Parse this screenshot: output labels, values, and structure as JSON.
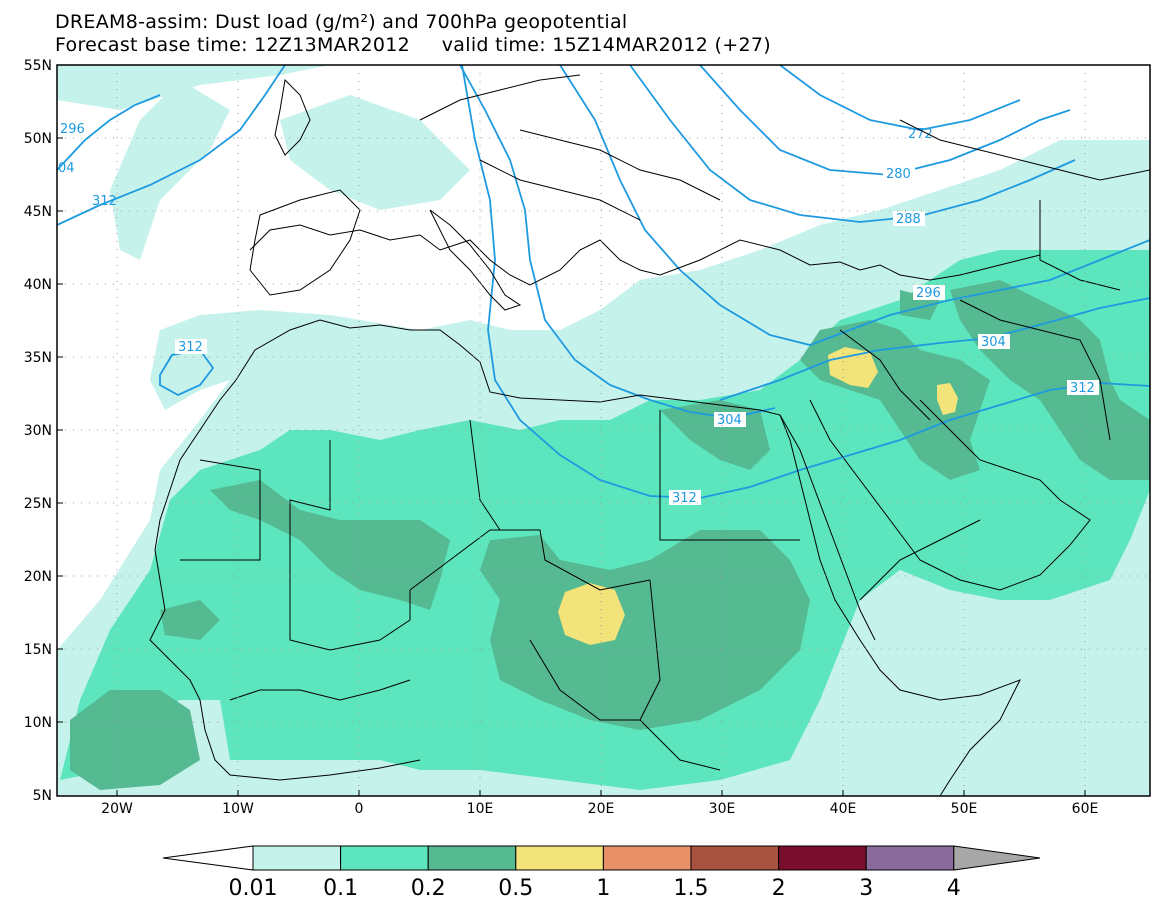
{
  "title": {
    "line1": "DREAM8-assim: Dust load (g/m²) and 700hPa geopotential",
    "line2": "Forecast base time: 12Z13MAR2012     valid time: 15Z14MAR2012 (+27)"
  },
  "axes": {
    "lat_labels": [
      "55N",
      "50N",
      "45N",
      "40N",
      "35N",
      "30N",
      "25N",
      "20N",
      "15N",
      "10N",
      "5N"
    ],
    "lon_labels": [
      "20W",
      "10W",
      "0",
      "10E",
      "20E",
      "30E",
      "40E",
      "50E",
      "60E"
    ],
    "lon_range": [
      -25,
      65
    ],
    "lat_range": [
      5,
      55
    ]
  },
  "contour_labels": [
    "296",
    "04",
    "312",
    "312",
    "272",
    "280",
    "288",
    "296",
    "304",
    "304",
    "312",
    "312"
  ],
  "colorbar": {
    "levels": [
      "0.01",
      "0.1",
      "0.2",
      "0.5",
      "1",
      "1.5",
      "2",
      "3",
      "4"
    ],
    "colors": [
      "#c6f2ec",
      "#5de6be",
      "#55b991",
      "#f2e37a",
      "#e89068",
      "#a8533f",
      "#7a0e2e",
      "#8a6a9c"
    ],
    "under_color": "#ffffff",
    "over_color": "#a7a7a7"
  },
  "colors": {
    "dust_1": "#c6f2ec",
    "dust_2": "#5de6be",
    "dust_3": "#55b991",
    "dust_4": "#f2e37a",
    "contour": "#1e9ae0"
  }
}
